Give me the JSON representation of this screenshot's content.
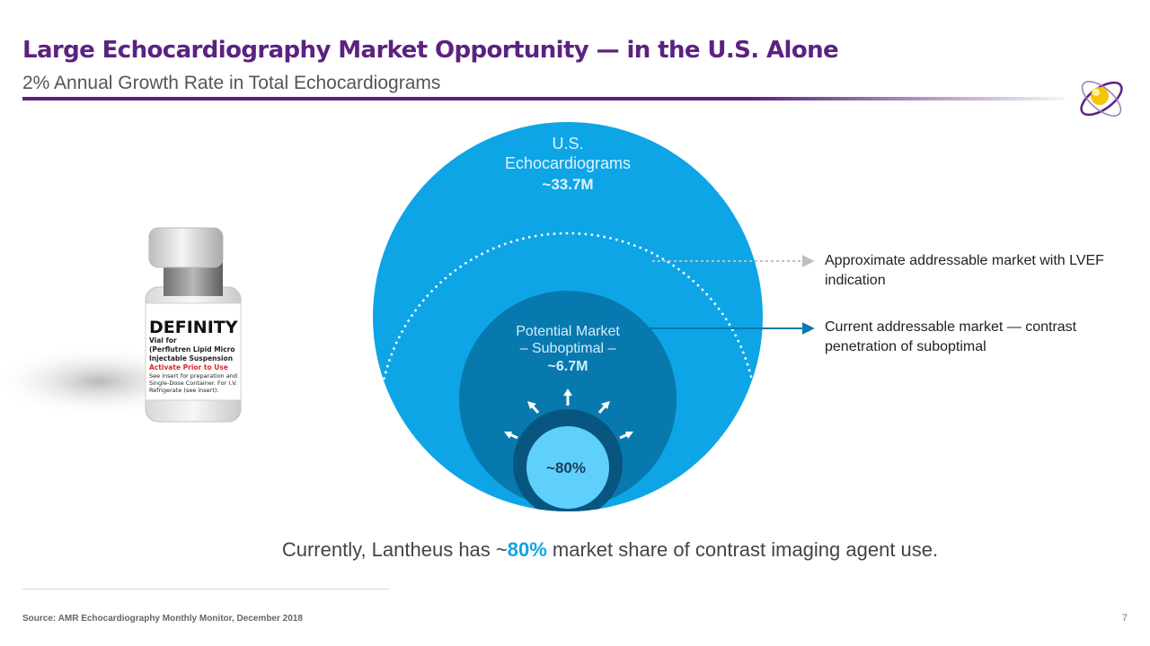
{
  "slide": {
    "title": "Large Echocardiography Market Opportunity — in the U.S. Alone",
    "subtitle": "2% Annual Growth Rate in Total Echocardiograms",
    "page_number": "7",
    "source": "Source:  AMR Echocardiography Monthly Monitor, December 2018"
  },
  "product": {
    "label_brand": "DEFINITY",
    "label_lines": [
      "Vial for",
      "(Perflutren Lipid Micro",
      "Injectable Suspension",
      "Activate Prior to Use",
      "See insert for preparation and",
      "Single-Dose Container. For I.V.",
      "Refrigerate (see insert)."
    ]
  },
  "diagram": {
    "outer": {
      "line1": "U.S.",
      "line2": "Echocardiograms",
      "value": "~33.7M"
    },
    "middle": {
      "line1": "Potential Market",
      "line2": "– Suboptimal –",
      "value": "~6.7M"
    },
    "inner": {
      "value": "~80%"
    },
    "callouts": [
      {
        "text": "Approximate addressable market with LVEF indication"
      },
      {
        "text": "Current addressable market — contrast penetration of suboptimal"
      }
    ]
  },
  "summary": {
    "before": "Currently, Lantheus has ~",
    "highlight": "80%",
    "after": " market share of contrast imaging agent use."
  },
  "colors": {
    "title": "#5b2281",
    "outer_circle": "#0ea5e6",
    "middle_circle": "#0779ae",
    "dark_circle": "#08557f",
    "inner_circle": "#5fd0fb",
    "highlight": "#0ea5e6"
  }
}
